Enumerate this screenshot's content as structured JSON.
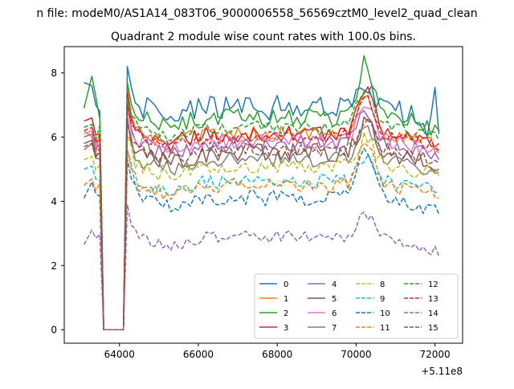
{
  "figure": {
    "suptitle": "n file: modeM0/AS1A14_083T06_9000006558_56569cztM0_level2_quad_clean"
  },
  "chart_data": {
    "type": "line",
    "title": "Quadrant 2 module wise count rates with 100.0s bins.",
    "xlabel": "",
    "ylabel": "",
    "x_offset_label": "+5.11e8",
    "xlim": [
      62600,
      72700
    ],
    "ylim": [
      -0.42,
      8.82
    ],
    "xticks": [
      64000,
      66000,
      68000,
      70000,
      72000
    ],
    "xtick_labels": [
      "64000",
      "66000",
      "68000",
      "70000",
      "72000"
    ],
    "yticks": [
      0,
      2,
      4,
      6,
      8
    ],
    "ytick_labels": [
      "0",
      "2",
      "4",
      "6",
      "8"
    ],
    "grid": false,
    "legend_position": "lower-right",
    "x_range": [
      63100,
      72100
    ],
    "x_step": 100,
    "gap": [
      63600,
      64100
    ],
    "series": [
      {
        "name": "0",
        "color": "#1f77b4",
        "dash": "solid",
        "level": 6.9,
        "first": 7.7,
        "second": 7.6,
        "peak_after_gap": 8.2,
        "end": 6.1,
        "noise": 0.42,
        "flare": 0.7,
        "spike_x": 72000,
        "spike_y": 7.55
      },
      {
        "name": "1",
        "color": "#ff7f0e",
        "dash": "solid",
        "level": 6.1,
        "first": 6.2,
        "second": 6.0,
        "peak_after_gap": 7.5,
        "end": 5.6,
        "noise": 0.25,
        "flare": 1.1
      },
      {
        "name": "2",
        "color": "#2ca02c",
        "dash": "solid",
        "level": 6.6,
        "first": 6.9,
        "second": 7.9,
        "peak_after_gap": 7.7,
        "end": 6.2,
        "noise": 0.3,
        "flare": 1.7
      },
      {
        "name": "3",
        "color": "#d62728",
        "dash": "solid",
        "level": 6.1,
        "first": 6.5,
        "second": 6.6,
        "peak_after_gap": 7.4,
        "end": 5.8,
        "noise": 0.25,
        "flare": 1.4
      },
      {
        "name": "4",
        "color": "#9467bd",
        "dash": "solid",
        "level": 5.8,
        "first": 6.0,
        "second": 6.1,
        "peak_after_gap": 7.2,
        "end": 5.3,
        "noise": 0.25,
        "flare": 1.0
      },
      {
        "name": "5",
        "color": "#8c564b",
        "dash": "solid",
        "level": 5.5,
        "first": 5.8,
        "second": 5.9,
        "peak_after_gap": 6.6,
        "end": 5.0,
        "noise": 0.3,
        "flare": 0.9
      },
      {
        "name": "6",
        "color": "#e377c2",
        "dash": "solid",
        "level": 5.9,
        "first": 6.1,
        "second": 6.2,
        "peak_after_gap": 7.0,
        "end": 5.5,
        "noise": 0.25,
        "flare": 1.2
      },
      {
        "name": "7",
        "color": "#7f7f7f",
        "dash": "solid",
        "level": 5.3,
        "first": 5.6,
        "second": 5.8,
        "peak_after_gap": 6.4,
        "end": 4.9,
        "noise": 0.25,
        "flare": 1.0
      },
      {
        "name": "8",
        "color": "#bcbd22",
        "dash": "dashed",
        "level": 5.1,
        "first": 5.3,
        "second": 5.4,
        "peak_after_gap": 6.1,
        "end": 4.8,
        "noise": 0.25,
        "flare": 0.9
      },
      {
        "name": "9",
        "color": "#17becf",
        "dash": "dashed",
        "level": 4.6,
        "first": 5.0,
        "second": 5.1,
        "peak_after_gap": 5.6,
        "end": 4.3,
        "noise": 0.25,
        "flare": 0.8
      },
      {
        "name": "10",
        "color": "#1f77b4",
        "dash": "dashed",
        "level": 4.1,
        "first": 4.1,
        "second": 4.6,
        "peak_after_gap": 5.3,
        "end": 3.6,
        "noise": 0.25,
        "flare": 1.6
      },
      {
        "name": "11",
        "color": "#ff7f0e",
        "dash": "dashed",
        "level": 4.5,
        "first": 4.5,
        "second": 4.7,
        "peak_after_gap": 5.6,
        "end": 4.1,
        "noise": 0.25,
        "flare": 1.2
      },
      {
        "name": "12",
        "color": "#2ca02c",
        "dash": "dashed",
        "level": 6.3,
        "first": 6.3,
        "second": 6.4,
        "peak_after_gap": 7.2,
        "end": 5.9,
        "noise": 0.2,
        "flare": 1.3
      },
      {
        "name": "13",
        "color": "#d62728",
        "dash": "dashed",
        "level": 6.0,
        "first": 6.2,
        "second": 6.3,
        "peak_after_gap": 7.0,
        "end": 5.6,
        "noise": 0.2,
        "flare": 1.3
      },
      {
        "name": "14",
        "color": "#9467bd",
        "dash": "dashed",
        "level": 2.9,
        "first": 2.65,
        "second": 3.1,
        "peak_after_gap": 3.9,
        "end": 2.3,
        "noise": 0.18,
        "flare": 0.7
      },
      {
        "name": "15",
        "color": "#8c564b",
        "dash": "dashed",
        "level": 5.6,
        "first": 5.7,
        "second": 5.8,
        "peak_after_gap": 6.5,
        "end": 5.2,
        "noise": 0.2,
        "flare": 1.0
      }
    ]
  }
}
